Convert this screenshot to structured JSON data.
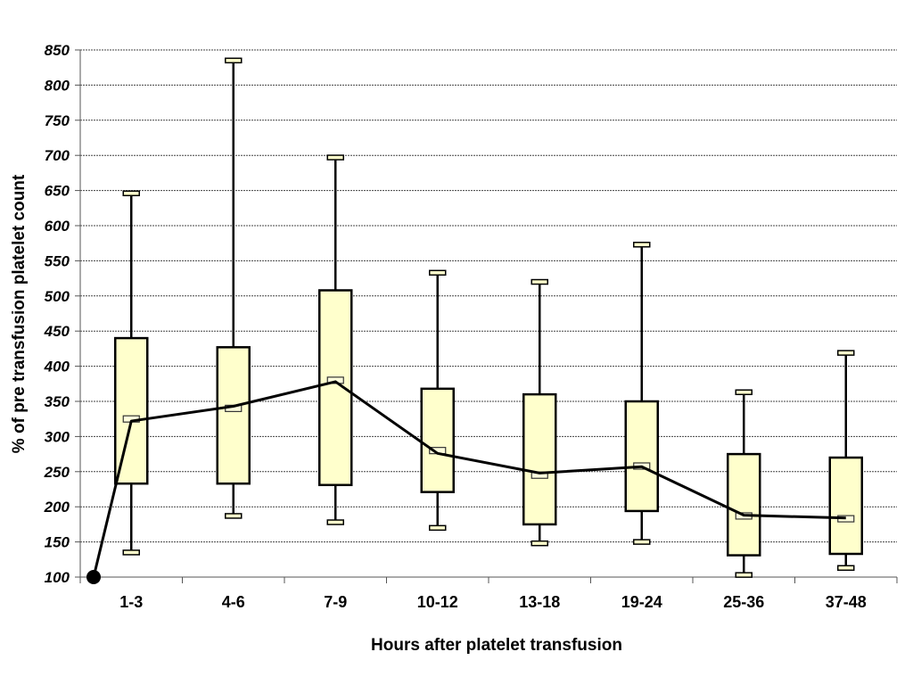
{
  "chart_data": {
    "type": "box",
    "title": "",
    "xlabel": "Hours after platelet transfusion",
    "ylabel": "% of pre transfusion platelet count",
    "ylim": [
      100,
      850
    ],
    "yticks": [
      100,
      150,
      200,
      250,
      300,
      350,
      400,
      450,
      500,
      550,
      600,
      650,
      700,
      750,
      800,
      850
    ],
    "grid": true,
    "box_fill": "#ffffcc",
    "baseline_point": {
      "label": "pre-transfusion",
      "value": 100
    },
    "categories": [
      "1-3",
      "4-6",
      "7-9",
      "10-12",
      "13-18",
      "19-24",
      "25-36",
      "37-48"
    ],
    "boxes": [
      {
        "category": "1-3",
        "min": 135,
        "q1": 233,
        "median": 325,
        "q3": 440,
        "max": 646
      },
      {
        "category": "4-6",
        "min": 187,
        "q1": 233,
        "median": 340,
        "q3": 427,
        "max": 835
      },
      {
        "category": "7-9",
        "min": 178,
        "q1": 231,
        "median": 380,
        "q3": 508,
        "max": 697
      },
      {
        "category": "10-12",
        "min": 170,
        "q1": 221,
        "median": 280,
        "q3": 368,
        "max": 533
      },
      {
        "category": "13-18",
        "min": 148,
        "q1": 175,
        "median": 245,
        "q3": 360,
        "max": 520
      },
      {
        "category": "19-24",
        "min": 150,
        "q1": 194,
        "median": 258,
        "q3": 350,
        "max": 573
      },
      {
        "category": "25-36",
        "min": 103,
        "q1": 131,
        "median": 187,
        "q3": 275,
        "max": 363
      },
      {
        "category": "37-48",
        "min": 113,
        "q1": 133,
        "median": 183,
        "q3": 270,
        "max": 419
      }
    ],
    "mean_line": {
      "name": "mean",
      "values": [
        322,
        343,
        378,
        276,
        248,
        257,
        188,
        184
      ]
    }
  }
}
